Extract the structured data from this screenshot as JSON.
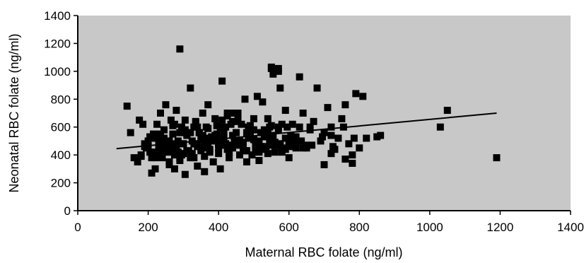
{
  "chart_data": {
    "type": "scatter",
    "title": "",
    "xlabel": "Maternal RBC folate (ng/ml)",
    "ylabel": "Neonatal RBC folate (ng/ml)",
    "xlim": [
      0,
      1400
    ],
    "ylim": [
      0,
      1400
    ],
    "xticks": [
      0,
      200,
      400,
      600,
      800,
      1000,
      1200,
      1400
    ],
    "yticks": [
      0,
      200,
      400,
      600,
      800,
      1000,
      1200,
      1400
    ],
    "grid": false,
    "legend": "none",
    "colors": {
      "plot_background": "#c8c8c8",
      "marker": "#000000",
      "line": "#000000"
    },
    "series": [
      {
        "kind": "points",
        "x": [
          140,
          150,
          160,
          170,
          175,
          180,
          185,
          190,
          195,
          200,
          205,
          210,
          210,
          215,
          220,
          225,
          230,
          235,
          240,
          245,
          250,
          250,
          255,
          260,
          265,
          270,
          275,
          280,
          285,
          290,
          295,
          300,
          305,
          310,
          315,
          320,
          325,
          330,
          335,
          340,
          345,
          350,
          355,
          360,
          365,
          370,
          375,
          380,
          385,
          390,
          395,
          400,
          405,
          410,
          415,
          420,
          425,
          430,
          435,
          440,
          445,
          450,
          455,
          460,
          465,
          470,
          475,
          480,
          485,
          490,
          495,
          500,
          505,
          510,
          515,
          520,
          525,
          530,
          540,
          550,
          555,
          560,
          570,
          575,
          580,
          590,
          600,
          610,
          620,
          630,
          640,
          650,
          660,
          670,
          680,
          690,
          700,
          710,
          720,
          730,
          740,
          750,
          760,
          770,
          780,
          790,
          800,
          810,
          820,
          850,
          860,
          1030,
          1050,
          1190,
          200,
          220,
          240,
          260,
          280,
          300,
          320,
          340,
          360,
          380,
          400,
          420,
          440,
          460,
          480,
          500,
          520,
          540,
          560,
          580,
          230,
          250,
          270,
          290,
          310,
          330,
          350,
          370,
          390,
          410,
          430,
          450,
          470,
          490,
          510,
          530,
          550,
          570,
          590,
          610,
          210,
          235,
          255,
          275,
          295,
          315,
          335,
          355,
          375,
          395,
          415,
          435,
          455,
          475,
          495,
          515,
          535,
          555,
          575,
          595,
          190,
          205,
          225,
          245,
          265,
          285,
          305,
          325,
          345,
          365,
          385,
          405,
          425,
          445,
          465,
          485,
          505,
          525,
          545,
          565,
          260,
          280,
          300,
          320,
          340,
          360,
          380,
          400,
          420,
          440,
          460,
          480,
          500,
          520,
          540,
          560,
          580,
          600,
          620,
          640,
          215,
          245,
          275,
          305,
          335,
          365,
          395,
          425,
          455,
          485,
          515,
          545,
          575,
          605,
          635,
          665,
          695,
          725,
          755,
          785,
          270,
          290,
          310,
          330,
          350,
          370,
          390,
          410,
          430,
          450,
          470,
          490,
          510,
          530,
          550,
          570,
          590,
          610,
          630,
          650,
          180,
          240,
          300,
          360,
          420,
          480,
          540,
          600,
          660,
          720,
          290,
          550,
          550,
          570,
          570,
          620,
          700,
          720,
          760,
          780
        ],
        "y": [
          750,
          560,
          380,
          350,
          650,
          400,
          620,
          480,
          450,
          500,
          420,
          380,
          270,
          550,
          300,
          620,
          450,
          700,
          380,
          520,
          480,
          760,
          420,
          350,
          650,
          550,
          300,
          720,
          420,
          380,
          600,
          480,
          260,
          550,
          430,
          880,
          500,
          380,
          640,
          320,
          560,
          450,
          700,
          280,
          600,
          760,
          420,
          500,
          350,
          660,
          550,
          450,
          300,
          930,
          560,
          480,
          700,
          380,
          620,
          450,
          500,
          560,
          700,
          400,
          620,
          450,
          800,
          350,
          600,
          520,
          400,
          660,
          480,
          820,
          360,
          560,
          780,
          440,
          660,
          500,
          980,
          420,
          600,
          880,
          450,
          720,
          380,
          620,
          500,
          960,
          700,
          450,
          580,
          640,
          880,
          500,
          560,
          740,
          600,
          440,
          520,
          660,
          760,
          480,
          340,
          840,
          450,
          820,
          520,
          530,
          540,
          600,
          720,
          380,
          460,
          380,
          520,
          330,
          470,
          410,
          560,
          460,
          390,
          520,
          480,
          600,
          540,
          470,
          430,
          510,
          460,
          570,
          490,
          420,
          500,
          440,
          610,
          360,
          540,
          480,
          430,
          590,
          510,
          470,
          420,
          640,
          490,
          560,
          450,
          580,
          610,
          480,
          520,
          460,
          420,
          550,
          470,
          620,
          400,
          560,
          480,
          540,
          440,
          610,
          520,
          470,
          650,
          430,
          580,
          500,
          460,
          540,
          480,
          600,
          460,
          530,
          400,
          580,
          440,
          500,
          650,
          410,
          560,
          480,
          520,
          600,
          440,
          700,
          490,
          540,
          430,
          560,
          510,
          470,
          500,
          440,
          560,
          380,
          600,
          470,
          530,
          410,
          480,
          640,
          500,
          430,
          580,
          460,
          540,
          490,
          620,
          470,
          530,
          450,
          520,
          470,
          400,
          580,
          630,
          450,
          510,
          680,
          490,
          560,
          420,
          600,
          470,
          540,
          500,
          470,
          530,
          460,
          600,
          520,
          480,
          560,
          430,
          600,
          510,
          470,
          540,
          650,
          420,
          560,
          490,
          610,
          450,
          530,
          470,
          580,
          440,
          510,
          600,
          470,
          390,
          430,
          480,
          520,
          470,
          560,
          410,
          490,
          600,
          540,
          1160,
          1030,
          1020,
          1020,
          1000,
          450,
          330,
          410,
          370,
          400
        ]
      },
      {
        "kind": "trend-line",
        "x": [
          110,
          1190
        ],
        "y": [
          445,
          700
        ]
      }
    ]
  }
}
